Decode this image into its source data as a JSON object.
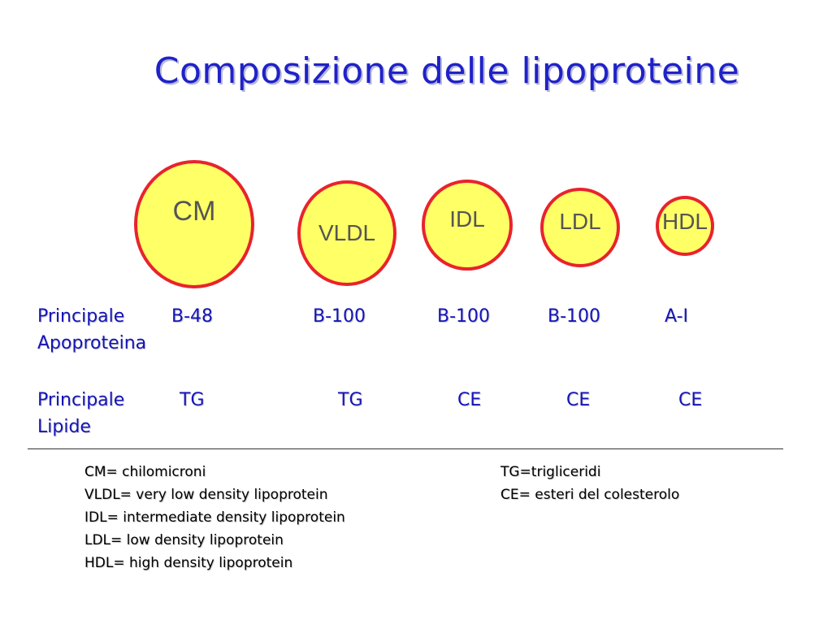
{
  "title": "Composizione delle lipoproteine",
  "particles": [
    {
      "label": "CM"
    },
    {
      "label": "VLDL"
    },
    {
      "label": "IDL"
    },
    {
      "label": "LDL"
    },
    {
      "label": "HDL"
    }
  ],
  "apoprotein_row": {
    "label_line1": "Principale",
    "label_line2": "Apoproteina",
    "values": [
      "B-48",
      "B-100",
      "B-100",
      "B-100",
      "A-I"
    ]
  },
  "lipid_row": {
    "label_line1": "Principale",
    "label_line2": "Lipide",
    "values": [
      "TG",
      "TG",
      "CE",
      "CE",
      "CE"
    ]
  },
  "legend_left": [
    "CM= chilomicroni",
    "VLDL= very low density lipoprotein",
    "IDL= intermediate density lipoprotein",
    "LDL= low density lipoprotein",
    "HDL= high density lipoprotein"
  ],
  "legend_right": [
    "TG=trigliceridi",
    "CE= esteri del colesterolo"
  ],
  "colors": {
    "title": "#1f22c8",
    "circle_fill": "#ffff66",
    "circle_border": "#e8232d",
    "row_text": "#1414b8"
  }
}
